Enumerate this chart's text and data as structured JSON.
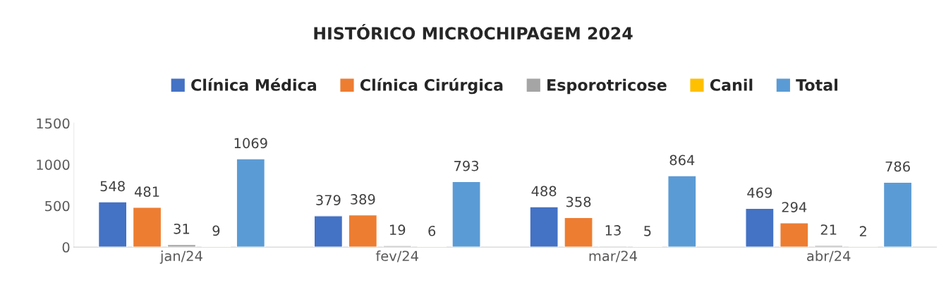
{
  "chart_data": {
    "type": "bar",
    "title": "HISTÓRICO MICROCHIPAGEM 2024",
    "categories": [
      "jan/24",
      "fev/24",
      "mar/24",
      "abr/24"
    ],
    "series": [
      {
        "name": "Clínica Médica",
        "color": "#4472c4",
        "values": [
          548,
          379,
          488,
          469
        ]
      },
      {
        "name": "Clínica Cirúrgica",
        "color": "#ed7d31",
        "values": [
          481,
          389,
          358,
          294
        ]
      },
      {
        "name": "Esporotricose",
        "color": "#a5a5a5",
        "values": [
          31,
          19,
          13,
          21
        ]
      },
      {
        "name": "Canil",
        "color": "#ffc000",
        "values": [
          9,
          6,
          5,
          2
        ]
      },
      {
        "name": "Total",
        "color": "#5b9bd5",
        "values": [
          1069,
          793,
          864,
          786
        ]
      }
    ],
    "ylim": [
      0,
      1500
    ],
    "yticks": [
      0,
      500,
      1000,
      1500
    ],
    "grid": false,
    "legend": "top",
    "data_labels": true
  }
}
